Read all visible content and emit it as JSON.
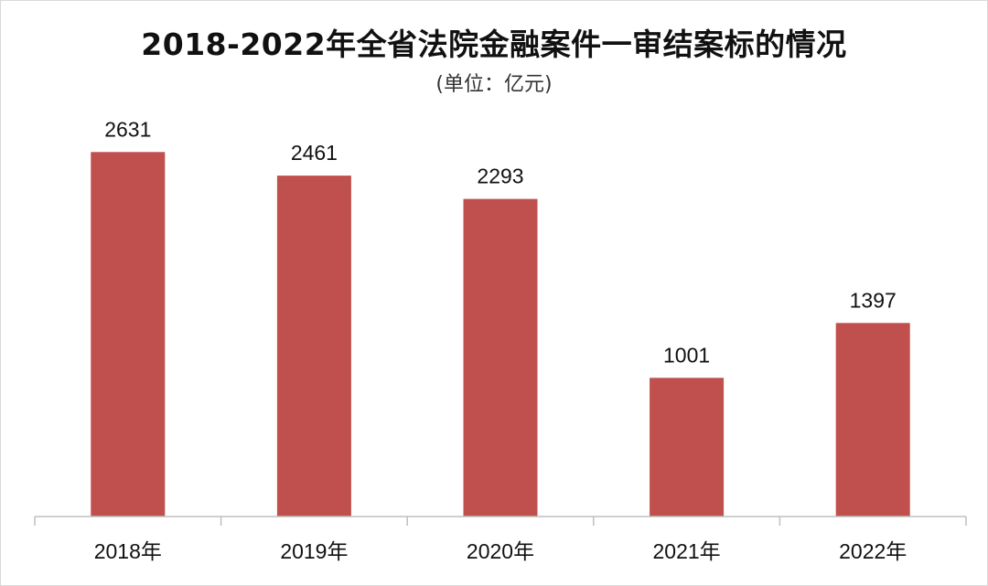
{
  "chart_data": {
    "type": "bar",
    "title": "2018-2022年全省法院金融案件一审结案标的情况",
    "subtitle": "(单位：亿元)",
    "categories": [
      "2018年",
      "2019年",
      "2020年",
      "2021年",
      "2022年"
    ],
    "values": [
      2631,
      2461,
      2293,
      1001,
      1397
    ],
    "data_labels": [
      "2631",
      "2461",
      "2293",
      "1001",
      "1397"
    ],
    "ylim": [
      0,
      2950
    ],
    "grid": false,
    "legend": "none",
    "bar_color": "#c0504d",
    "axis_color": "#bfbfbf"
  }
}
